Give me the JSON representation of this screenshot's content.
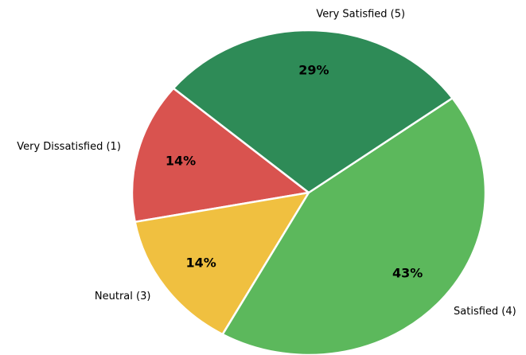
{
  "chart_data": {
    "type": "pie",
    "categories": [
      "Very Dissatisfied (1)",
      "Neutral (3)",
      "Satisfied (4)",
      "Very Satisfied (5)"
    ],
    "values": [
      14,
      14,
      43,
      29
    ],
    "value_labels": [
      "14%",
      "14%",
      "43%",
      "29%"
    ],
    "colors": [
      "#d9534f",
      "#f0c040",
      "#5cb85c",
      "#2e8b57"
    ],
    "start_angle": 140
  }
}
